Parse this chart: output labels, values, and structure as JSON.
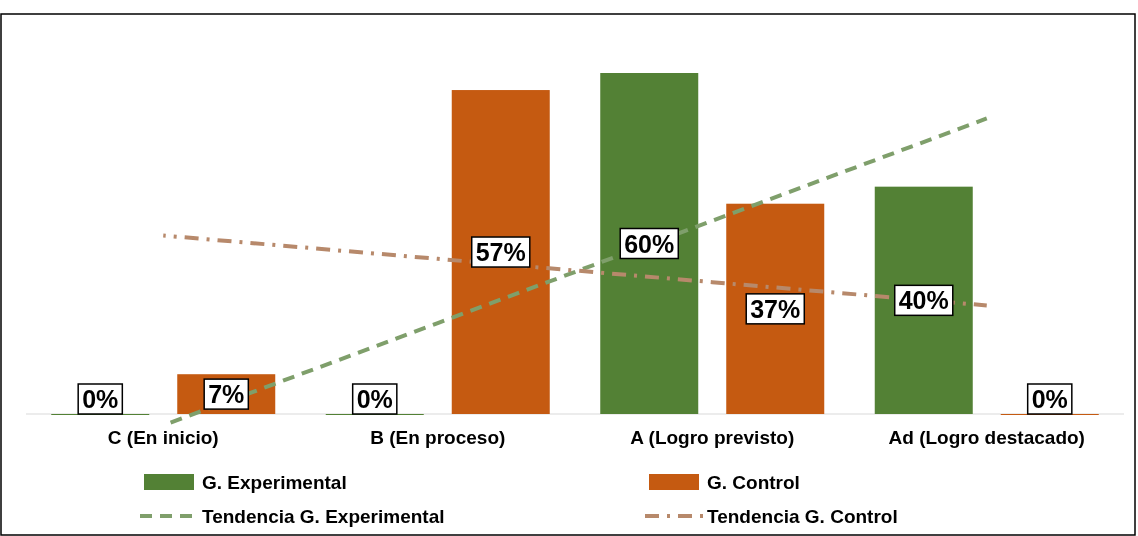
{
  "chart_data": {
    "type": "bar",
    "categories": [
      "C (En inicio)",
      "B (En proceso)",
      "A (Logro previsto)",
      "Ad (Logro destacado)"
    ],
    "tick_labels": "x",
    "legend": "bottom",
    "series": [
      {
        "name": "G. Experimental",
        "color": "#538135",
        "values": [
          0,
          0,
          60,
          40
        ],
        "value_labels": [
          "0%",
          "0%",
          "60%",
          "40%"
        ]
      },
      {
        "name": "G. Control",
        "color": "#c55a11",
        "values": [
          7,
          57,
          37,
          0
        ],
        "value_labels": [
          "7%",
          "57%",
          "37%",
          "0%"
        ]
      },
      {
        "name": "Tendencia G. Experimental",
        "type": "line",
        "line_style": "dashed",
        "color": "#7f9f6b",
        "values": [
          -2,
          16,
          34,
          52
        ]
      },
      {
        "name": "Tendencia G. Control",
        "type": "line",
        "line_style": "dotted",
        "color": "#b7896b",
        "values": [
          31.4,
          27.3,
          23.2,
          19.1
        ]
      }
    ]
  }
}
